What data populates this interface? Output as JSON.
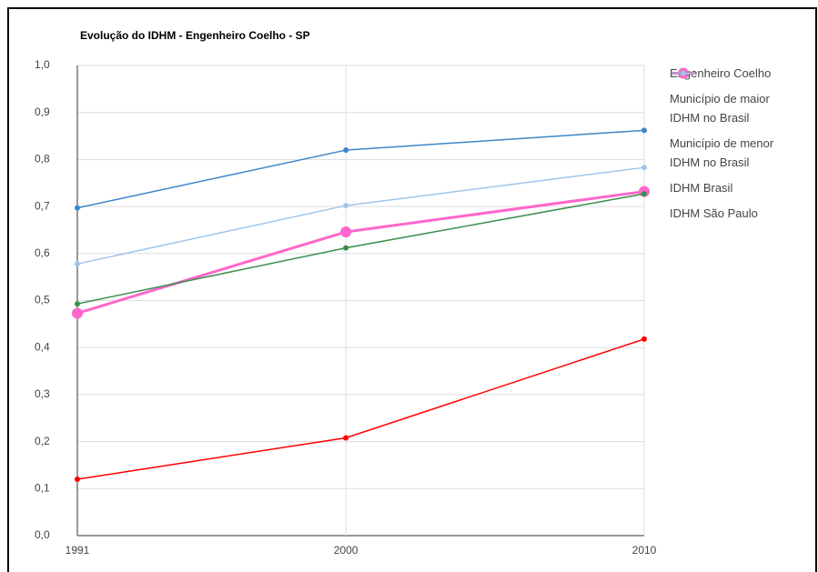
{
  "chart_data": {
    "type": "line",
    "title": "Evolução do IDHM - Engenheiro Coelho - SP",
    "x": [
      1991,
      2000,
      2010
    ],
    "series": [
      {
        "name": "Engenheiro Coelho",
        "color": "#ff66cc",
        "values": [
          0.473,
          0.646,
          0.732
        ]
      },
      {
        "name": "Município de maior IDHM no Brasil",
        "color": "#3d85c6",
        "values": [
          0.697,
          0.82,
          0.862
        ]
      },
      {
        "name": "Município de menor IDHM no Brasil",
        "color": "#ff0000",
        "values": [
          0.12,
          0.208,
          0.418
        ]
      },
      {
        "name": "IDHM Brasil",
        "color": "#3b8f4b",
        "values": [
          0.493,
          0.612,
          0.727
        ]
      },
      {
        "name": "IDHM São Paulo",
        "color": "#9fc5e8",
        "values": [
          0.578,
          0.702,
          0.783
        ]
      }
    ],
    "xlim": [
      1991,
      2010
    ],
    "xticks": [
      1991,
      2000,
      2010
    ],
    "ylim": [
      0,
      1
    ],
    "yticks": [
      {
        "value": 0,
        "label": "0,0"
      },
      {
        "value": 0.1,
        "label": "0,1"
      },
      {
        "value": 0.2,
        "label": "0,2"
      },
      {
        "value": 0.3,
        "label": "0,3"
      },
      {
        "value": 0.4,
        "label": "0,4"
      },
      {
        "value": 0.5,
        "label": "0,5"
      },
      {
        "value": 0.6,
        "label": "0,6"
      },
      {
        "value": 0.7,
        "label": "0,7"
      },
      {
        "value": 0.8,
        "label": "0,8"
      },
      {
        "value": 0.9,
        "label": "0,9"
      },
      {
        "value": 1,
        "label": "1,0"
      }
    ],
    "grid": true,
    "legend": "right"
  }
}
